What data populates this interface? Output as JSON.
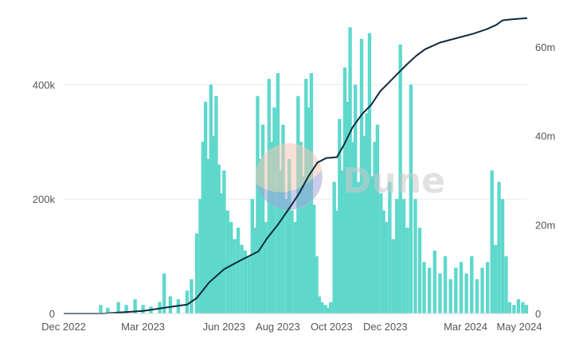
{
  "chart_data": {
    "type": "bar+line",
    "title": "",
    "xlabel": "",
    "ylabel": "",
    "y_left": {
      "ticks": [
        0,
        200000,
        400000
      ],
      "tick_labels": [
        "0",
        "200k",
        "400k"
      ],
      "range": [
        0,
        520000
      ]
    },
    "y_right": {
      "ticks": [
        0,
        20000000,
        40000000,
        60000000
      ],
      "tick_labels": [
        "0",
        "20m",
        "40m",
        "60m"
      ],
      "range": [
        0,
        67000000
      ]
    },
    "x_axis": {
      "start": "2022-12-01",
      "end": "2024-05-10",
      "tick_labels": [
        "Dec 2022",
        "Mar 2023",
        "Jun 2023",
        "Aug 2023",
        "Oct 2023",
        "Dec 2023",
        "Mar 2024",
        "May 2024"
      ],
      "tick_dates": [
        "2022-12-01",
        "2023-03-01",
        "2023-06-01",
        "2023-08-01",
        "2023-10-01",
        "2023-12-01",
        "2024-03-01",
        "2024-05-01"
      ]
    },
    "grid": true,
    "legend": "none",
    "series": [
      {
        "kind": "bar",
        "axis": "left",
        "color": "#5fd8cc",
        "points": [
          [
            "2022-12-05",
            0
          ],
          [
            "2022-12-20",
            0
          ],
          [
            "2023-01-05",
            1000
          ],
          [
            "2023-01-12",
            15000
          ],
          [
            "2023-01-20",
            10000
          ],
          [
            "2023-02-01",
            20000
          ],
          [
            "2023-02-10",
            15000
          ],
          [
            "2023-02-20",
            25000
          ],
          [
            "2023-03-01",
            15000
          ],
          [
            "2023-03-10",
            12000
          ],
          [
            "2023-03-20",
            20000
          ],
          [
            "2023-03-25",
            70000
          ],
          [
            "2023-04-01",
            30000
          ],
          [
            "2023-04-10",
            25000
          ],
          [
            "2023-04-20",
            40000
          ],
          [
            "2023-04-25",
            60000
          ],
          [
            "2023-05-01",
            140000
          ],
          [
            "2023-05-05",
            200000
          ],
          [
            "2023-05-08",
            300000
          ],
          [
            "2023-05-11",
            370000
          ],
          [
            "2023-05-14",
            270000
          ],
          [
            "2023-05-17",
            400000
          ],
          [
            "2023-05-20",
            310000
          ],
          [
            "2023-05-23",
            380000
          ],
          [
            "2023-05-26",
            260000
          ],
          [
            "2023-05-29",
            210000
          ],
          [
            "2023-06-01",
            250000
          ],
          [
            "2023-06-05",
            180000
          ],
          [
            "2023-06-09",
            160000
          ],
          [
            "2023-06-13",
            130000
          ],
          [
            "2023-06-17",
            150000
          ],
          [
            "2023-06-21",
            120000
          ],
          [
            "2023-06-25",
            110000
          ],
          [
            "2023-06-29",
            100000
          ],
          [
            "2023-07-03",
            200000
          ],
          [
            "2023-07-06",
            150000
          ],
          [
            "2023-07-09",
            380000
          ],
          [
            "2023-07-12",
            270000
          ],
          [
            "2023-07-15",
            330000
          ],
          [
            "2023-07-18",
            160000
          ],
          [
            "2023-07-22",
            410000
          ],
          [
            "2023-07-25",
            300000
          ],
          [
            "2023-07-28",
            360000
          ],
          [
            "2023-08-01",
            420000
          ],
          [
            "2023-08-04",
            250000
          ],
          [
            "2023-08-07",
            330000
          ],
          [
            "2023-08-11",
            200000
          ],
          [
            "2023-08-14",
            270000
          ],
          [
            "2023-08-17",
            180000
          ],
          [
            "2023-08-21",
            160000
          ],
          [
            "2023-08-24",
            380000
          ],
          [
            "2023-08-27",
            300000
          ],
          [
            "2023-08-30",
            240000
          ],
          [
            "2023-09-02",
            410000
          ],
          [
            "2023-09-05",
            360000
          ],
          [
            "2023-09-08",
            420000
          ],
          [
            "2023-09-11",
            190000
          ],
          [
            "2023-09-14",
            100000
          ],
          [
            "2023-09-17",
            30000
          ],
          [
            "2023-09-20",
            20000
          ],
          [
            "2023-09-24",
            15000
          ],
          [
            "2023-09-27",
            10000
          ],
          [
            "2023-09-30",
            20000
          ],
          [
            "2023-10-04",
            230000
          ],
          [
            "2023-10-07",
            180000
          ],
          [
            "2023-10-10",
            340000
          ],
          [
            "2023-10-13",
            250000
          ],
          [
            "2023-10-16",
            430000
          ],
          [
            "2023-10-19",
            370000
          ],
          [
            "2023-10-22",
            500000
          ],
          [
            "2023-10-25",
            300000
          ],
          [
            "2023-10-28",
            400000
          ],
          [
            "2023-11-01",
            230000
          ],
          [
            "2023-11-04",
            480000
          ],
          [
            "2023-11-07",
            310000
          ],
          [
            "2023-11-10",
            350000
          ],
          [
            "2023-11-13",
            490000
          ],
          [
            "2023-11-16",
            240000
          ],
          [
            "2023-11-19",
            300000
          ],
          [
            "2023-11-22",
            330000
          ],
          [
            "2023-11-26",
            210000
          ],
          [
            "2023-11-29",
            180000
          ],
          [
            "2023-12-02",
            160000
          ],
          [
            "2023-12-06",
            230000
          ],
          [
            "2023-12-10",
            130000
          ],
          [
            "2023-12-14",
            200000
          ],
          [
            "2023-12-18",
            470000
          ],
          [
            "2023-12-22",
            200000
          ],
          [
            "2023-12-26",
            150000
          ],
          [
            "2023-12-30",
            400000
          ],
          [
            "2024-01-04",
            200000
          ],
          [
            "2024-01-09",
            150000
          ],
          [
            "2024-01-14",
            90000
          ],
          [
            "2024-01-20",
            80000
          ],
          [
            "2024-01-26",
            110000
          ],
          [
            "2024-02-01",
            70000
          ],
          [
            "2024-02-07",
            100000
          ],
          [
            "2024-02-13",
            60000
          ],
          [
            "2024-02-19",
            80000
          ],
          [
            "2024-02-25",
            90000
          ],
          [
            "2024-03-02",
            70000
          ],
          [
            "2024-03-08",
            100000
          ],
          [
            "2024-03-14",
            60000
          ],
          [
            "2024-03-20",
            80000
          ],
          [
            "2024-03-26",
            90000
          ],
          [
            "2024-03-31",
            250000
          ],
          [
            "2024-04-04",
            120000
          ],
          [
            "2024-04-08",
            230000
          ],
          [
            "2024-04-12",
            200000
          ],
          [
            "2024-04-16",
            100000
          ],
          [
            "2024-04-20",
            20000
          ],
          [
            "2024-04-25",
            15000
          ],
          [
            "2024-04-30",
            25000
          ],
          [
            "2024-05-05",
            20000
          ],
          [
            "2024-05-09",
            15000
          ]
        ]
      },
      {
        "kind": "line",
        "axis": "right",
        "color": "#0f2b3d",
        "points": [
          [
            "2022-12-01",
            0
          ],
          [
            "2023-01-15",
            0
          ],
          [
            "2023-03-01",
            600000
          ],
          [
            "2023-04-01",
            1500000
          ],
          [
            "2023-04-20",
            2000000
          ],
          [
            "2023-05-01",
            3500000
          ],
          [
            "2023-05-15",
            7000000
          ],
          [
            "2023-06-01",
            10000000
          ],
          [
            "2023-06-20",
            12000000
          ],
          [
            "2023-07-10",
            14000000
          ],
          [
            "2023-07-20",
            17000000
          ],
          [
            "2023-08-01",
            20000000
          ],
          [
            "2023-08-15",
            24000000
          ],
          [
            "2023-08-25",
            27000000
          ],
          [
            "2023-09-05",
            31000000
          ],
          [
            "2023-09-15",
            34000000
          ],
          [
            "2023-09-25",
            35000000
          ],
          [
            "2023-10-07",
            35200000
          ],
          [
            "2023-10-15",
            38000000
          ],
          [
            "2023-10-25",
            42000000
          ],
          [
            "2023-11-05",
            45000000
          ],
          [
            "2023-11-15",
            47000000
          ],
          [
            "2023-11-25",
            50000000
          ],
          [
            "2023-12-05",
            52000000
          ],
          [
            "2023-12-15",
            54000000
          ],
          [
            "2023-12-25",
            56000000
          ],
          [
            "2024-01-05",
            58000000
          ],
          [
            "2024-01-15",
            59500000
          ],
          [
            "2024-02-01",
            61000000
          ],
          [
            "2024-02-20",
            62000000
          ],
          [
            "2024-03-10",
            63000000
          ],
          [
            "2024-03-25",
            64000000
          ],
          [
            "2024-04-05",
            65000000
          ],
          [
            "2024-04-12",
            66000000
          ],
          [
            "2024-04-20",
            66200000
          ],
          [
            "2024-05-10",
            66500000
          ]
        ]
      }
    ]
  },
  "watermark": {
    "text": "Dune"
  }
}
